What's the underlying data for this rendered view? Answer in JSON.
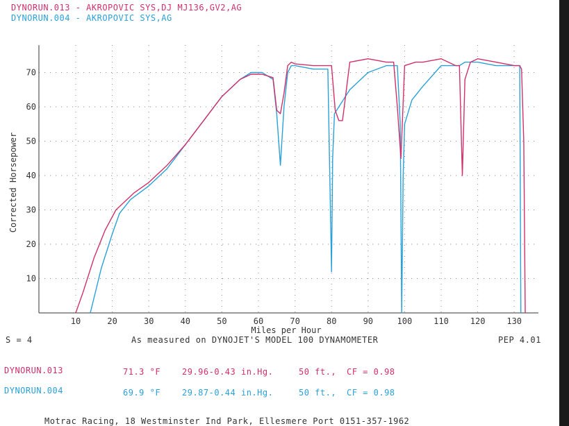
{
  "header": {
    "run1": "DYNORUN.013 - AKROPOVIC SYS,DJ MJ136,GV2,AG",
    "run2": "DYNORUN.004 - AKROPOVIC SYS,AG"
  },
  "info": {
    "s_value": "S = 4",
    "measured": "As measured on DYNOJET'S MODEL 100 DYNAMOMETER",
    "version": "PEP 4.01"
  },
  "conditions": [
    {
      "run": "DYNORUN.013",
      "temp": "71.3 °F",
      "baro": "29.96-0.43 in.Hg.",
      "alt": "50 ft.,",
      "cf": "CF = 0.98"
    },
    {
      "run": "DYNORUN.004",
      "temp": "69.9 °F",
      "baro": "29.87-0.44 in.Hg.",
      "alt": "50 ft.,",
      "cf": "CF = 0.98"
    }
  ],
  "footer": "Motrac Racing, 18 Westminster Ind Park, Ellesmere Port 0151-357-1962",
  "colors": {
    "run013": "#d0306a",
    "run004": "#2aa0d8",
    "grid": "#888888",
    "axis": "#333333"
  },
  "chart_data": {
    "type": "line",
    "xlabel": "Miles per Hour",
    "ylabel": "Corrected Horsepower",
    "xlim": [
      0,
      135
    ],
    "ylim": [
      0,
      75
    ],
    "xticks": [
      10,
      20,
      30,
      40,
      50,
      60,
      70,
      80,
      90,
      100,
      110,
      120,
      130
    ],
    "yticks": [
      10,
      20,
      30,
      40,
      50,
      60,
      70
    ],
    "grid": true,
    "series": [
      {
        "name": "DYNORUN.013",
        "color": "#d0306a",
        "x": [
          10,
          12,
          15,
          18,
          21,
          23,
          26,
          30,
          35,
          40,
          45,
          50,
          55,
          58,
          61,
          64,
          65,
          66,
          67,
          68,
          69,
          70,
          75,
          80,
          81,
          82,
          83,
          85,
          90,
          95,
          97,
          98,
          99,
          100,
          103,
          105,
          110,
          114,
          115,
          115.8,
          116.5,
          118,
          120,
          125,
          130,
          131.5,
          132,
          132.6,
          133
        ],
        "y": [
          0,
          6,
          16,
          24,
          30,
          32,
          35,
          38,
          43,
          49,
          56,
          63,
          68,
          69.5,
          69.5,
          68.5,
          59,
          58,
          64,
          72,
          73,
          72.5,
          72,
          72,
          59,
          56,
          56,
          73,
          74,
          73,
          73,
          60,
          45,
          72,
          73,
          73,
          74,
          72,
          72,
          40,
          68,
          73,
          74,
          73,
          72,
          72,
          71,
          50,
          0
        ]
      },
      {
        "name": "DYNORUN.004",
        "color": "#2aa0d8",
        "x": [
          14,
          17,
          20,
          22,
          25,
          30,
          35,
          40,
          45,
          50,
          55,
          58,
          61,
          64,
          65,
          66,
          67,
          68,
          69,
          70,
          75,
          79,
          80,
          80.3,
          80.8,
          82,
          85,
          90,
          95,
          98,
          98.8,
          99.2,
          99.6,
          100,
          102,
          105,
          110,
          115,
          116.5,
          118,
          120,
          125,
          130,
          131.5,
          131.8
        ],
        "y": [
          0,
          13,
          23,
          29,
          33,
          37,
          42,
          49,
          56,
          63,
          68,
          70,
          70,
          68,
          58,
          43,
          60,
          70,
          72,
          72,
          71,
          71,
          12,
          45,
          58,
          60,
          65,
          70,
          72,
          72,
          55,
          0,
          40,
          55,
          62,
          66,
          72,
          72,
          73,
          73,
          73,
          72,
          72,
          72,
          0
        ]
      }
    ]
  }
}
